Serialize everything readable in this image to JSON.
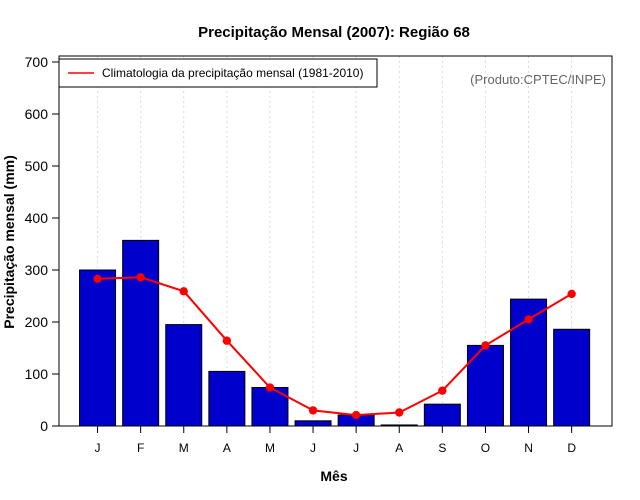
{
  "chart_data": {
    "type": "bar",
    "title": "Precipitação Mensal (2007): Região 68",
    "xlabel": "Mês",
    "ylabel": "Precipitação mensal (mm)",
    "ylim": [
      0,
      700
    ],
    "yticks": [
      0,
      100,
      200,
      300,
      400,
      500,
      600,
      700
    ],
    "categories": [
      "J",
      "F",
      "M",
      "A",
      "M",
      "J",
      "J",
      "A",
      "S",
      "O",
      "N",
      "D"
    ],
    "series": [
      {
        "name": "Precipitação mensal (2007)",
        "type": "bar",
        "color": "#0000CD",
        "values": [
          300,
          357,
          195,
          105,
          74,
          10,
          21,
          2,
          42,
          155,
          244,
          186
        ]
      },
      {
        "name": "Climatologia da precipitação mensal (1981-2010)",
        "type": "line",
        "color": "#FF0000",
        "values": [
          283,
          286,
          259,
          164,
          74,
          30,
          21,
          26,
          68,
          155,
          205,
          254
        ]
      }
    ],
    "legend": {
      "position": "top-left",
      "entries": [
        "Climatologia da precipitação mensal (1981-2010)"
      ]
    },
    "source_note": "(Produto:CPTEC/INPE)",
    "grid": "vertical-dotted"
  }
}
